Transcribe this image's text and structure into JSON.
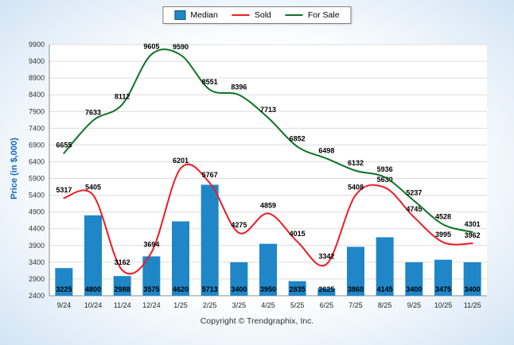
{
  "chart_data": {
    "type": "bar",
    "title": "",
    "ylabel": "Price (in $,000)",
    "xlabel": "",
    "ylim": [
      2400,
      9900
    ],
    "ytick_step": 500,
    "grid": true,
    "legend_position": "top-center",
    "categories": [
      "9/24",
      "10/24",
      "11/24",
      "12/24",
      "1/25",
      "2/25",
      "3/25",
      "4/25",
      "5/25",
      "6/25",
      "7/25",
      "8/25",
      "9/25",
      "10/25",
      "11/25"
    ],
    "series": [
      {
        "name": "Median",
        "type": "bar",
        "color": "#1f86c8",
        "values": [
          3225,
          4800,
          2988,
          3575,
          4620,
          5713,
          3400,
          3950,
          2835,
          2625,
          3860,
          4145,
          3400,
          3475,
          3400
        ]
      },
      {
        "name": "Sold",
        "type": "line",
        "color": "#ed1c24",
        "values": [
          5317,
          5405,
          3162,
          3694,
          6201,
          5767,
          4275,
          4859,
          4015,
          3342,
          5408,
          5630,
          4745,
          3995,
          3962
        ]
      },
      {
        "name": "For Sale",
        "type": "line",
        "color": "#0e7326",
        "values": [
          6655,
          7633,
          8112,
          9605,
          9590,
          8551,
          8396,
          7713,
          6852,
          6498,
          6132,
          5936,
          5237,
          4528,
          4301
        ]
      }
    ]
  },
  "footer": {
    "copyright": "Copyright © Trendgraphix, Inc."
  }
}
